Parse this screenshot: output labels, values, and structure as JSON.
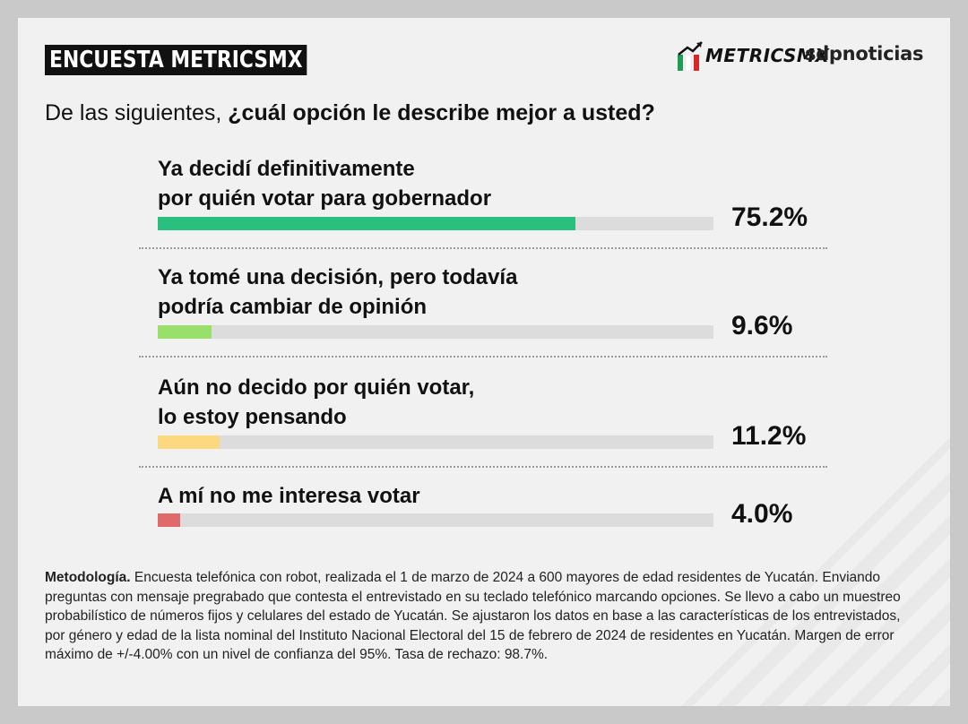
{
  "header": {
    "badge": "ENCUESTA METRICSMX",
    "logo_metrics": "METRICSMX",
    "logo_sdp": "sdpnoticias"
  },
  "question": {
    "prefix": "De las siguientes, ",
    "bold": "¿cuál opción le describe mejor a usted?"
  },
  "chart_data": {
    "type": "bar",
    "orientation": "horizontal",
    "categories": [
      "Ya decidí definitivamente\npor quién votar para gobernador",
      "Ya tomé una decisión, pero todavía\npodría cambiar de opinión",
      "Aún no decido por quién votar,\nlo estoy pensando",
      "A mí no me interesa votar"
    ],
    "values": [
      75.2,
      9.6,
      11.2,
      4.0
    ],
    "value_labels": [
      "75.2%",
      "9.6%",
      "11.2%",
      "4.0%"
    ],
    "colors": [
      "#2bbf7e",
      "#98e06a",
      "#fcd97e",
      "#e06a6a"
    ],
    "track_color": "#dcdcdc",
    "xlim": [
      0,
      100
    ]
  },
  "methodology": {
    "title": "Metodología.",
    "text": " Encuesta telefónica con robot, realizada el 1 de marzo de 2024 a 600 mayores de edad residentes de Yucatán. Enviando preguntas con mensaje pregrabado que contesta el entrevistado en su teclado telefónico marcando opciones. Se llevo a cabo un muestreo probabilístico de números fijos y celulares del estado de Yucatán. Se ajustaron los datos en base a las características de los entrevistados, por género y edad de la lista nominal del Instituto Nacional Electoral del 15 de febrero de 2024 de residentes en Yucatán. Margen de error máximo de +/-4.00% con un nivel de confianza del 95%. Tasa de rechazo: 98.7%."
  }
}
